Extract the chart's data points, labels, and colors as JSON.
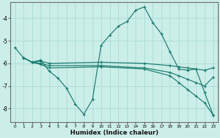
{
  "xlabel": "Humidex (Indice chaleur)",
  "bg_color": "#cceee8",
  "grid_color": "#aaddda",
  "line_color": "#1a7a6e",
  "xlim": [
    -0.5,
    23.5
  ],
  "ylim": [
    -8.6,
    -3.3
  ],
  "yticks": [
    -8,
    -7,
    -6,
    -5,
    -4
  ],
  "xticks": [
    0,
    1,
    2,
    3,
    4,
    5,
    6,
    7,
    8,
    9,
    10,
    11,
    12,
    13,
    14,
    15,
    16,
    17,
    18,
    19,
    20,
    21,
    22,
    23
  ],
  "series": [
    {
      "x": [
        0,
        1,
        2,
        3,
        4,
        5,
        6,
        7,
        8,
        9,
        10,
        11,
        12,
        13,
        14,
        15,
        16,
        17,
        18,
        19,
        20,
        21,
        22,
        23
      ],
      "y": [
        -5.3,
        -5.75,
        -5.95,
        -5.85,
        -6.35,
        -6.65,
        -7.1,
        -7.8,
        -8.25,
        -7.6,
        -5.2,
        -4.75,
        -4.35,
        -4.15,
        -3.65,
        -3.5,
        -4.2,
        -4.7,
        -5.5,
        -6.25,
        -6.3,
        -6.25,
        -7.3,
        -8.3
      ]
    },
    {
      "x": [
        1,
        2,
        3,
        4,
        10,
        15,
        18,
        19,
        20,
        21,
        22,
        23
      ],
      "y": [
        -5.75,
        -5.95,
        -5.9,
        -6.0,
        -5.95,
        -6.0,
        -6.1,
        -6.15,
        -6.2,
        -6.25,
        -6.3,
        -6.2
      ]
    },
    {
      "x": [
        1,
        2,
        3,
        4,
        10,
        15,
        18,
        19,
        20,
        21,
        22,
        23
      ],
      "y": [
        -5.75,
        -5.95,
        -6.0,
        -6.1,
        -6.1,
        -6.2,
        -6.4,
        -6.55,
        -6.7,
        -6.85,
        -7.0,
        -6.6
      ]
    },
    {
      "x": [
        1,
        2,
        3,
        4,
        10,
        15,
        18,
        19,
        20,
        21,
        22,
        23
      ],
      "y": [
        -5.75,
        -5.95,
        -6.05,
        -6.2,
        -6.15,
        -6.25,
        -6.55,
        -6.85,
        -7.15,
        -7.45,
        -7.75,
        -8.3
      ]
    }
  ]
}
